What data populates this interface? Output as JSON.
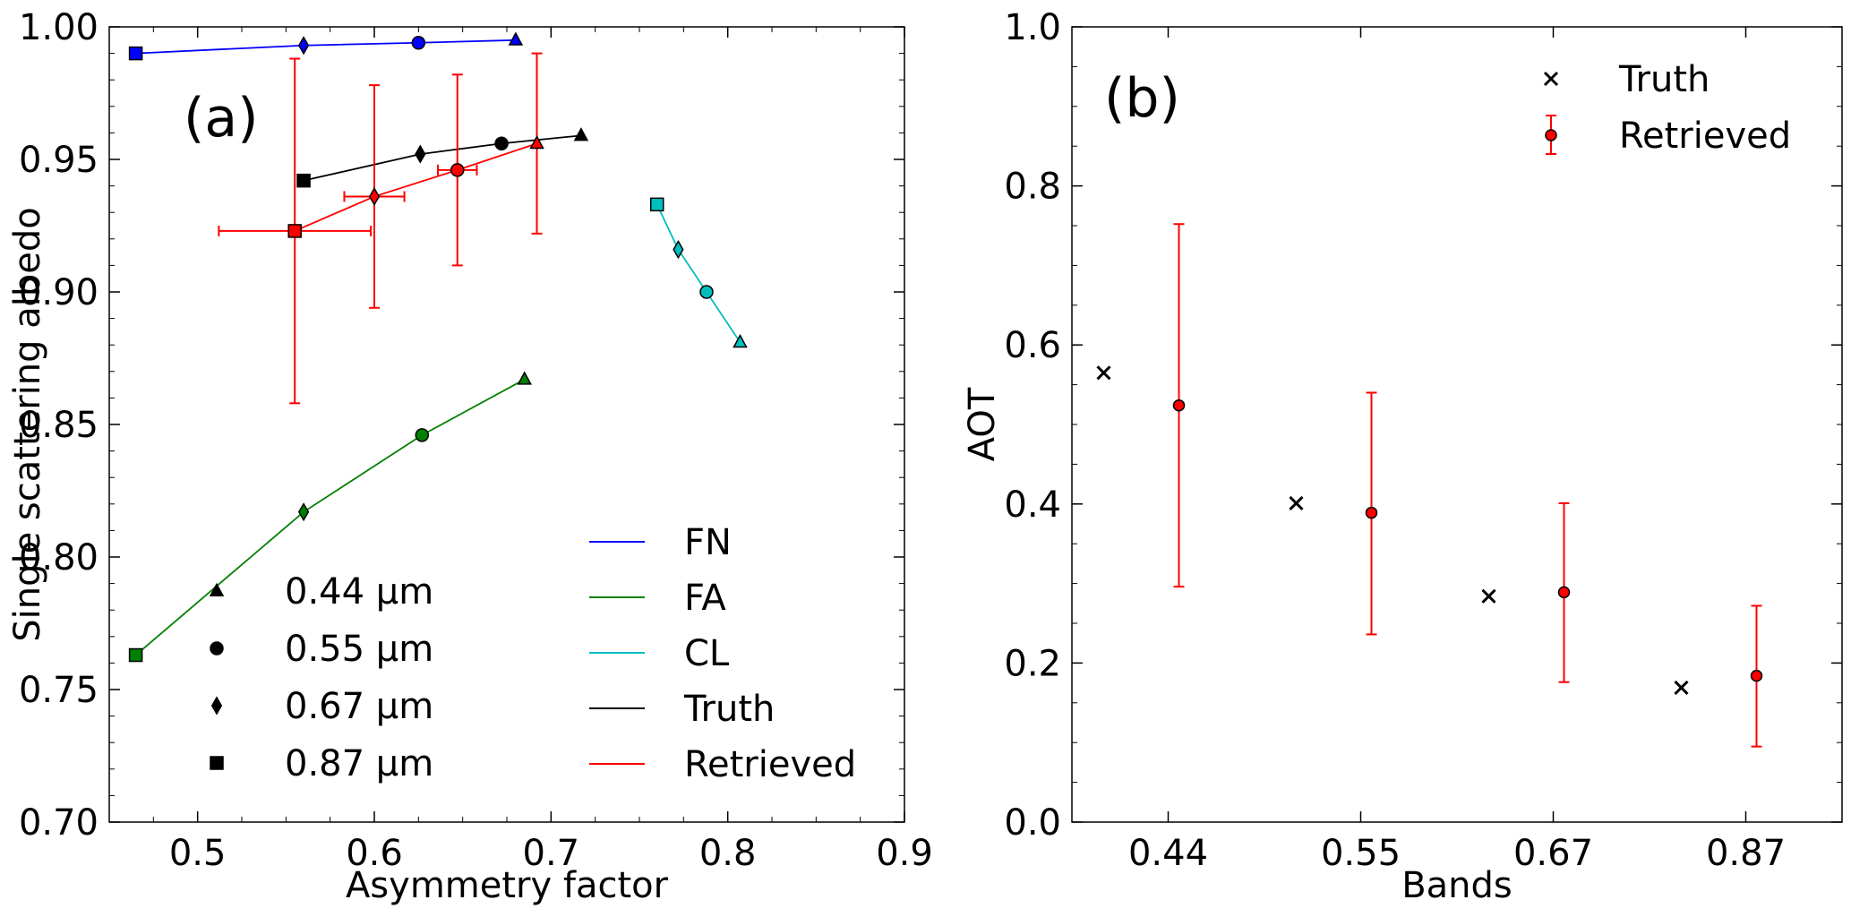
{
  "chart_data": [
    {
      "type": "line",
      "panel_label": "(a)",
      "xlabel": "Asymmetry factor",
      "ylabel": "Single scattering albedo",
      "xlim": [
        0.45,
        0.9
      ],
      "ylim": [
        0.7,
        1.0
      ],
      "xticks": [
        "0.5",
        "0.6",
        "0.7",
        "0.8",
        "0.9"
      ],
      "yticks": [
        "0.70",
        "0.75",
        "0.80",
        "0.85",
        "0.90",
        "0.95",
        "1.00"
      ],
      "xtick_values": [
        0.5,
        0.6,
        0.7,
        0.8,
        0.9
      ],
      "ytick_values": [
        0.7,
        0.75,
        0.8,
        0.85,
        0.9,
        0.95,
        1.0
      ],
      "marker_legend": [
        {
          "label": "0.44 μm",
          "marker": "triangle"
        },
        {
          "label": "0.55 μm",
          "marker": "circle"
        },
        {
          "label": "0.67 μm",
          "marker": "diamond"
        },
        {
          "label": "0.87 μm",
          "marker": "square"
        }
      ],
      "series_legend": [
        "FN",
        "FA",
        "CL",
        "Truth",
        "Retrieved"
      ],
      "series": [
        {
          "name": "FN",
          "color": "#0000ff",
          "markers": [
            "square",
            "diamond",
            "circle",
            "triangle"
          ],
          "x": [
            0.465,
            0.56,
            0.625,
            0.68
          ],
          "y": [
            0.99,
            0.993,
            0.994,
            0.995
          ]
        },
        {
          "name": "FA",
          "color": "#008000",
          "markers": [
            "square",
            "diamond",
            "circle",
            "triangle"
          ],
          "x": [
            0.465,
            0.56,
            0.627,
            0.685
          ],
          "y": [
            0.763,
            0.817,
            0.846,
            0.867
          ]
        },
        {
          "name": "CL",
          "color": "#00bfbf",
          "markers": [
            "square",
            "diamond",
            "circle",
            "triangle"
          ],
          "x": [
            0.76,
            0.772,
            0.788,
            0.807
          ],
          "y": [
            0.933,
            0.916,
            0.9,
            0.881
          ]
        },
        {
          "name": "Truth",
          "color": "#000000",
          "markers": [
            "square",
            "diamond",
            "circle",
            "triangle"
          ],
          "x": [
            0.56,
            0.626,
            0.672,
            0.717
          ],
          "y": [
            0.942,
            0.952,
            0.956,
            0.959
          ]
        },
        {
          "name": "Retrieved",
          "color": "#ff0000",
          "markers": [
            "square",
            "diamond",
            "circle",
            "triangle"
          ],
          "x": [
            0.555,
            0.6,
            0.647,
            0.692
          ],
          "y": [
            0.923,
            0.936,
            0.946,
            0.956
          ],
          "xerr": [
            0.043,
            0.017,
            0.011,
            0.0
          ],
          "yerr": [
            0.065,
            0.042,
            0.036,
            0.034
          ]
        }
      ]
    },
    {
      "type": "scatter",
      "panel_label": "(b)",
      "xlabel": "Bands",
      "ylabel": "AOT",
      "categories": [
        "0.44",
        "0.55",
        "0.67",
        "0.87"
      ],
      "ylim": [
        0.0,
        1.0
      ],
      "yticks": [
        "0.0",
        "0.2",
        "0.4",
        "0.6",
        "0.8",
        "1.0"
      ],
      "ytick_values": [
        0.0,
        0.2,
        0.4,
        0.6,
        0.8,
        1.0
      ],
      "series": [
        {
          "name": "Truth",
          "marker": "x",
          "color": "#000000",
          "values": [
            0.565,
            0.401,
            0.284,
            0.169
          ]
        },
        {
          "name": "Retrieved",
          "marker": "circle",
          "color": "#ff0000",
          "values": [
            0.524,
            0.389,
            0.289,
            0.184
          ],
          "lower": [
            0.296,
            0.236,
            0.176,
            0.095
          ],
          "upper": [
            0.752,
            0.54,
            0.401,
            0.272
          ]
        }
      ]
    }
  ]
}
